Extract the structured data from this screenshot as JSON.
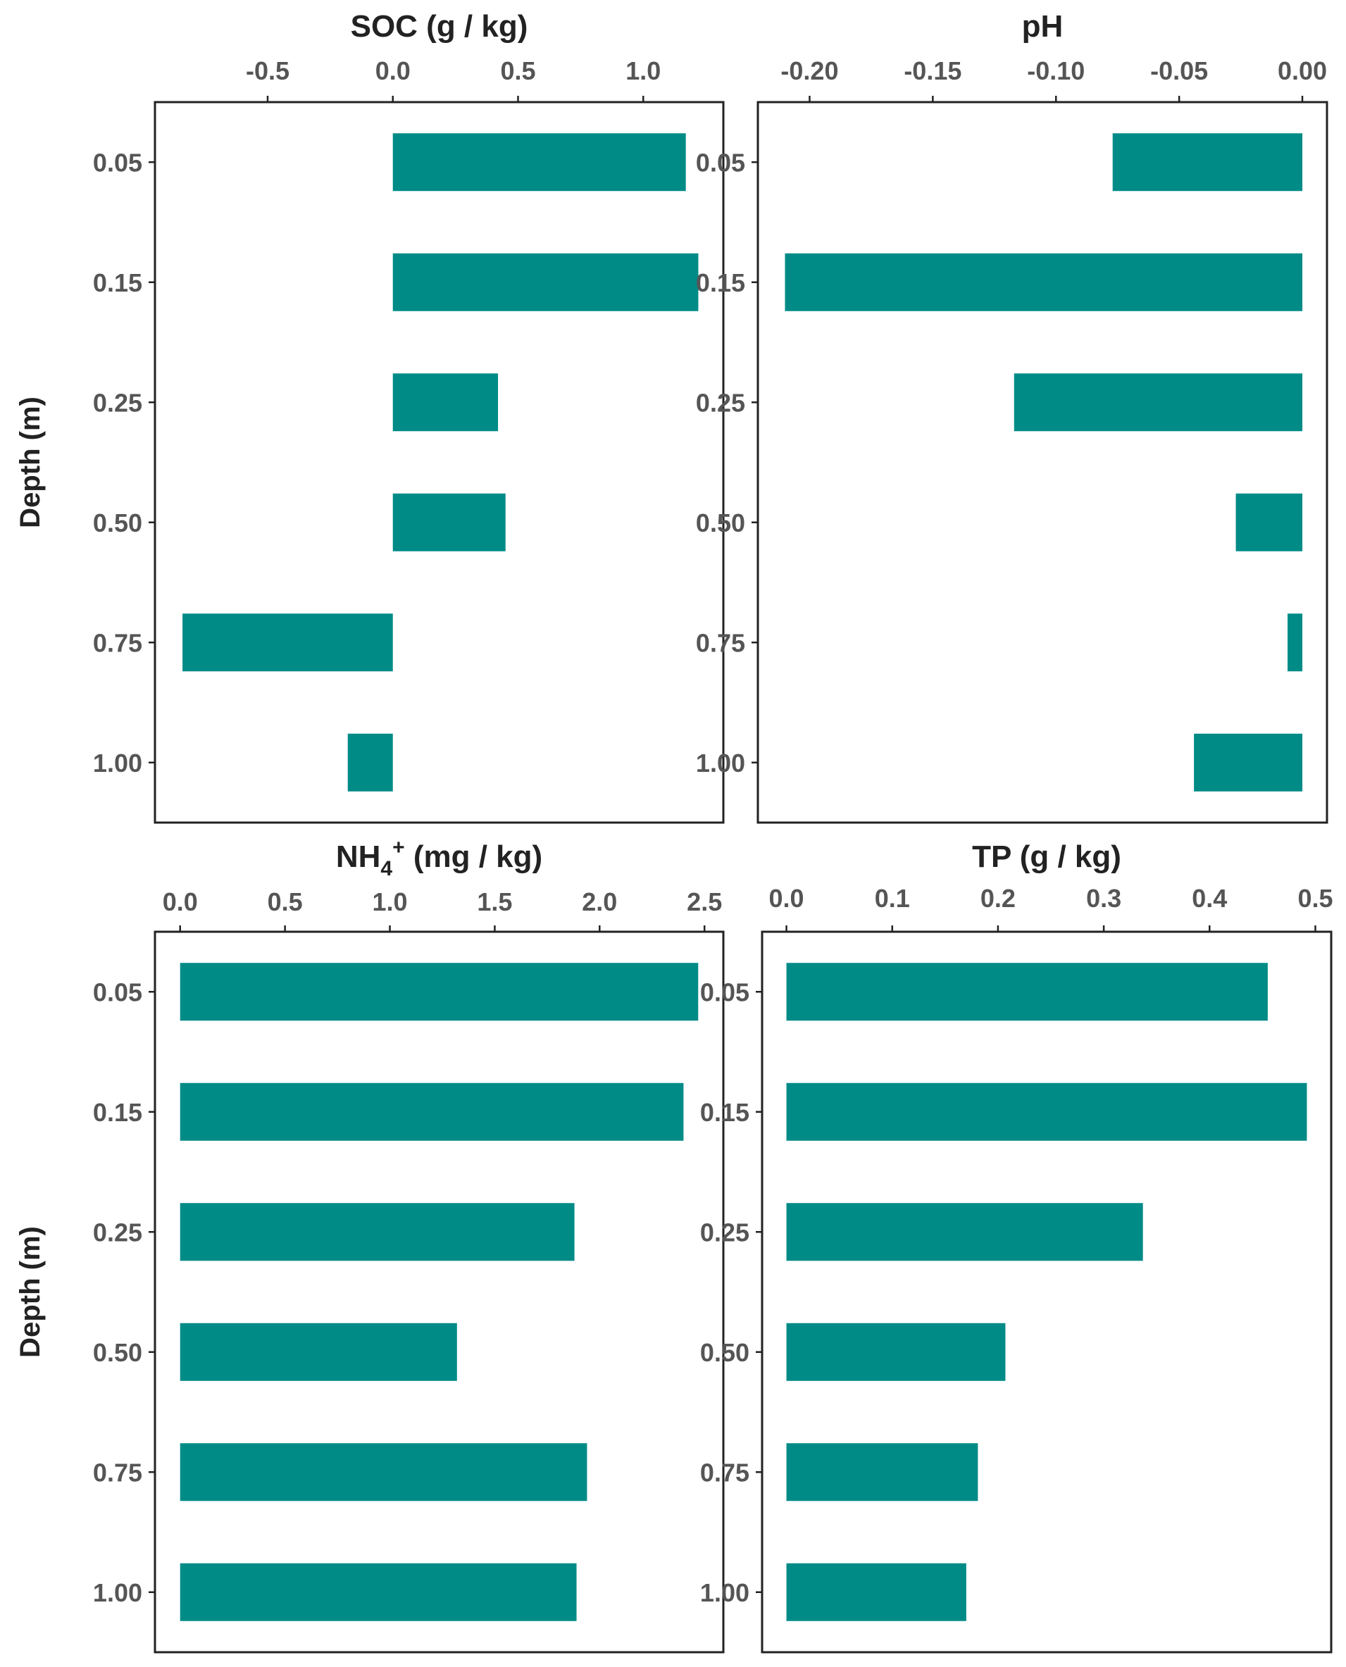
{
  "figure": {
    "bar_color": "#008b87",
    "frame_color": "#222222"
  },
  "chart_data": [
    {
      "type": "bar",
      "orientation": "horizontal",
      "title": "SOC (g / kg)",
      "title_main": "SOC (g / kg)",
      "ylabel": "Depth (m)",
      "categories": [
        "0.05",
        "0.15",
        "0.25",
        "0.50",
        "0.75",
        "1.00"
      ],
      "values": [
        1.17,
        1.22,
        0.42,
        0.45,
        -0.84,
        -0.18
      ],
      "xlim": [
        -0.95,
        1.32
      ],
      "xticks": [
        -0.5,
        0.0,
        0.5,
        1.0
      ],
      "xtick_labels": [
        "-0.5",
        "0.0",
        "0.5",
        "1.0"
      ],
      "x_axis_position": "top",
      "color": "#008b87"
    },
    {
      "type": "bar",
      "orientation": "horizontal",
      "title": "pH",
      "title_main": "pH",
      "ylabel": "",
      "categories": [
        "0.05",
        "0.15",
        "0.25",
        "0.50",
        "0.75",
        "1.00"
      ],
      "values": [
        -0.077,
        -0.21,
        -0.117,
        -0.027,
        -0.006,
        -0.044
      ],
      "xlim": [
        -0.221,
        0.01
      ],
      "xticks": [
        -0.2,
        -0.15,
        -0.1,
        -0.05,
        0.0
      ],
      "xtick_labels": [
        "-0.20",
        "-0.15",
        "-0.10",
        "-0.05",
        "0.00"
      ],
      "x_axis_position": "top",
      "color": "#008b87"
    },
    {
      "type": "bar",
      "orientation": "horizontal",
      "title": "NH4+ (mg / kg)",
      "title_main": "NH",
      "title_sub": "4",
      "title_sup": "+",
      "title_rest": " (mg / kg)",
      "ylabel": "Depth (m)",
      "categories": [
        "0.05",
        "0.15",
        "0.25",
        "0.50",
        "0.75",
        "1.00"
      ],
      "values": [
        2.47,
        2.4,
        1.88,
        1.32,
        1.94,
        1.89
      ],
      "xlim": [
        -0.12,
        2.59
      ],
      "xticks": [
        0.0,
        0.5,
        1.0,
        1.5,
        2.0,
        2.5
      ],
      "xtick_labels": [
        "0.0",
        "0.5",
        "1.0",
        "1.5",
        "2.0",
        "2.5"
      ],
      "x_axis_position": "top",
      "color": "#008b87"
    },
    {
      "type": "bar",
      "orientation": "horizontal",
      "title": "TP (g / kg)",
      "title_main": "TP (g / kg)",
      "ylabel": "",
      "categories": [
        "0.05",
        "0.15",
        "0.25",
        "0.50",
        "0.75",
        "1.00"
      ],
      "values": [
        0.455,
        0.492,
        0.337,
        0.207,
        0.181,
        0.17
      ],
      "xlim": [
        -0.023,
        0.515
      ],
      "xticks": [
        0.0,
        0.1,
        0.2,
        0.3,
        0.4,
        0.5
      ],
      "xtick_labels": [
        "0.0",
        "0.1",
        "0.2",
        "0.3",
        "0.4",
        "0.5"
      ],
      "x_axis_position": "top",
      "color": "#008b87"
    }
  ]
}
